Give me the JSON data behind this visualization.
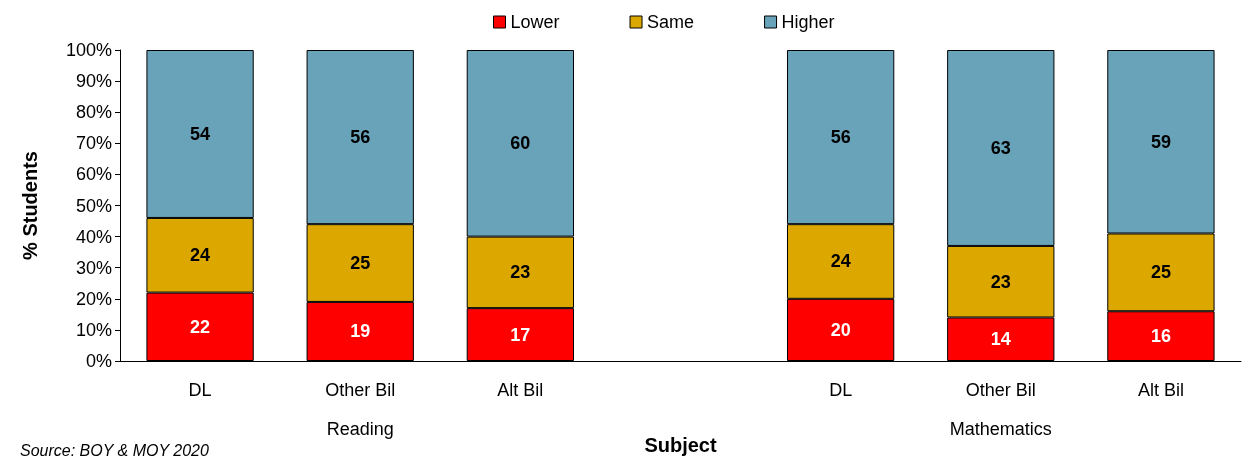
{
  "chart_data": {
    "type": "bar",
    "stacked": true,
    "xlabel": "Subject",
    "ylabel": "% Students",
    "categories": [
      "DL",
      "Other Bil",
      "Alt Bil",
      null,
      "DL",
      "Other Bil",
      "Alt Bil"
    ],
    "series": [
      {
        "name": "Lower",
        "color": "#ff0000",
        "values": [
          22,
          19,
          17,
          null,
          20,
          14,
          16
        ]
      },
      {
        "name": "Same",
        "color": "#dca800",
        "values": [
          24,
          25,
          23,
          null,
          24,
          23,
          25
        ]
      },
      {
        "name": "Higher",
        "color": "#69a3ba",
        "values": [
          54,
          56,
          60,
          null,
          56,
          63,
          59
        ]
      }
    ],
    "ylim": [
      0,
      100
    ],
    "yticks": [
      {
        "value": 0,
        "label": "0%"
      },
      {
        "value": 10,
        "label": "10%"
      },
      {
        "value": 20,
        "label": "20%"
      },
      {
        "value": 30,
        "label": "30%"
      },
      {
        "value": 40,
        "label": "40%"
      },
      {
        "value": 50,
        "label": "50%"
      },
      {
        "value": 60,
        "label": "60%"
      },
      {
        "value": 70,
        "label": "70%"
      },
      {
        "value": 80,
        "label": "80%"
      },
      {
        "value": 90,
        "label": "90%"
      },
      {
        "value": 100,
        "label": "100%"
      }
    ],
    "data_labels": true,
    "legend": "top",
    "grid": false,
    "annotations": [
      "Reading",
      "Mathematics",
      "Source: BOY & MOY 2020"
    ]
  }
}
